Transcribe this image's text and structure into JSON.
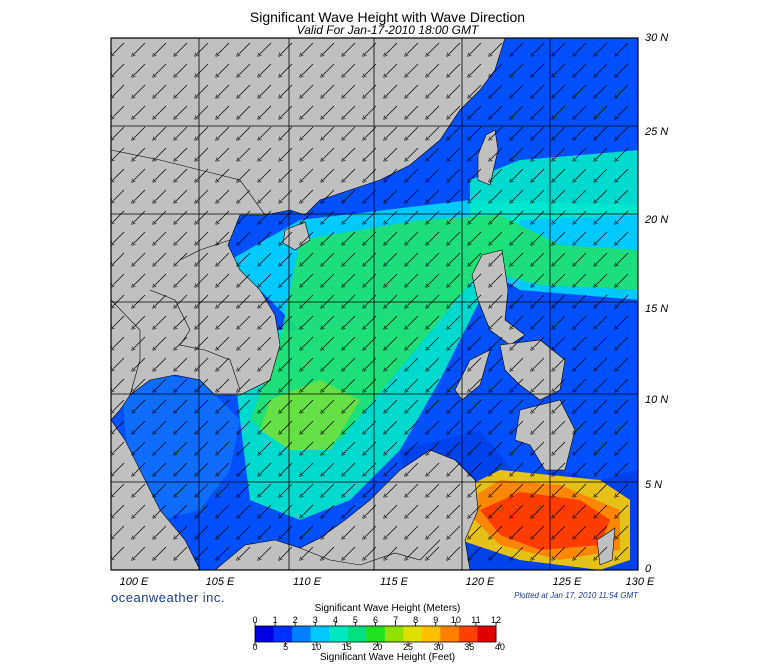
{
  "header": {
    "title": "Significant Wave Height with Wave Direction",
    "subtitle": "Valid For Jan-17-2010 18:00 GMT"
  },
  "map": {
    "region": "South China Sea",
    "lon_range": [
      100,
      130
    ],
    "lat_range": [
      0,
      30
    ],
    "lat_labels": [
      "30 N",
      "25 N",
      "20 N",
      "15 N",
      "10 N",
      "5 N",
      "0"
    ],
    "lon_labels": [
      "100 E",
      "105 E",
      "110 E",
      "115 E",
      "120 E",
      "125 E",
      "130 E"
    ],
    "land_color": "#c0c0c0",
    "grid_color": "#000000",
    "wave_direction": "toward southwest"
  },
  "footer": {
    "brand": "oceanweather inc.",
    "plotted": "Plotted at Jan 17, 2010 11:54 GMT"
  },
  "colorbar": {
    "title_meters": "Significant Wave Height (Meters)",
    "title_feet": "Significant Wave Height (Feet)",
    "meters_ticks": [
      "0",
      "1",
      "2",
      "3",
      "4",
      "5",
      "6",
      "7",
      "8",
      "9",
      "10",
      "11",
      "12"
    ],
    "feet_ticks": [
      "0",
      "5",
      "10",
      "15",
      "20",
      "25",
      "30",
      "35",
      "40"
    ],
    "colors": [
      "#0000e0",
      "#0030ff",
      "#0080ff",
      "#00c8ff",
      "#00e8c0",
      "#00e080",
      "#20e020",
      "#90e000",
      "#e0e000",
      "#ffc000",
      "#ff8000",
      "#ff4000",
      "#e00000"
    ]
  }
}
